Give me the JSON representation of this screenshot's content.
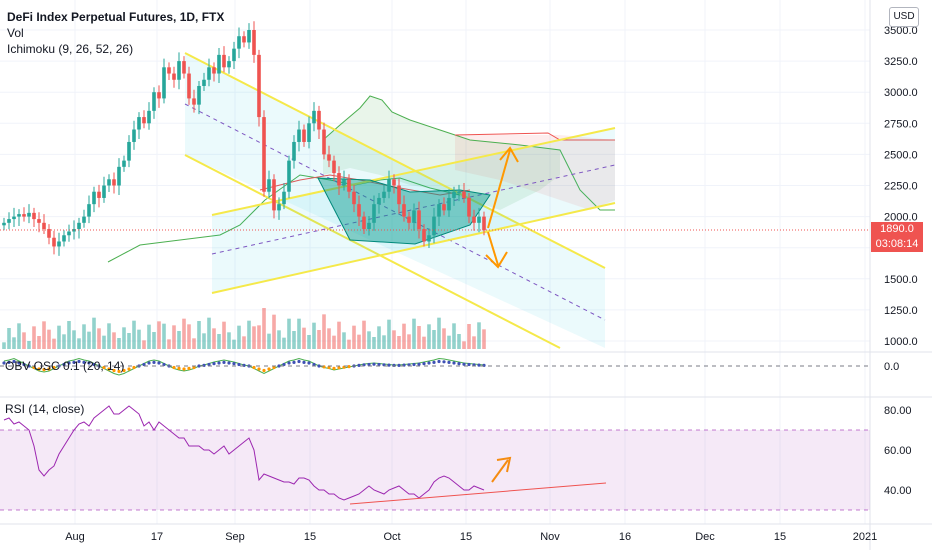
{
  "header": {
    "title": "DeFi Index Perpetual Futures, 1D, FTX",
    "vol_label": "Vol",
    "ichimoku_label": "Ichimoku (9, 26, 52, 26)"
  },
  "scale_button": "USD",
  "price_panel": {
    "y_ticks": [
      "3500.0",
      "3250.0",
      "3000.0",
      "2750.0",
      "2500.0",
      "2250.0",
      "2000.0",
      "1750.0",
      "1500.0",
      "1250.0",
      "1000.0"
    ],
    "y_tick_values": [
      3500,
      3250,
      3000,
      2750,
      2500,
      2250,
      2000,
      1750,
      1500,
      1250,
      1000
    ],
    "last_price": "1890.0",
    "countdown": "03:08:14",
    "last_price_color": "#ef5350"
  },
  "obv_panel": {
    "label": "OBV OSC 0.1 (20, 14)",
    "y_ticks": [
      "0.0"
    ]
  },
  "rsi_panel": {
    "label": "RSI (14, close)",
    "y_ticks": [
      "80.00",
      "60.00",
      "40.00"
    ],
    "y_tick_values": [
      80,
      60,
      40
    ],
    "band_upper": 70,
    "band_lower": 30
  },
  "x_axis": {
    "labels": [
      "Aug",
      "17",
      "Sep",
      "15",
      "Oct",
      "15",
      "Nov",
      "16",
      "Dec",
      "15",
      "2021"
    ]
  },
  "colors": {
    "up": "#26a69a",
    "down": "#ef5350",
    "channel": "#f5e94a",
    "rsi_line": "#9c27b0",
    "arrow": "#ff9800"
  },
  "chart_data": {
    "type": "candlestick",
    "symbol": "DeFi Index Perpetual Futures",
    "timeframe": "1D",
    "exchange": "FTX",
    "y_range": [
      900,
      3600
    ],
    "close": [
      1950,
      1980,
      2000,
      2020,
      2000,
      2030,
      1980,
      1950,
      1900,
      1830,
      1760,
      1800,
      1850,
      1880,
      1900,
      1950,
      2000,
      2100,
      2200,
      2150,
      2250,
      2300,
      2250,
      2400,
      2450,
      2600,
      2700,
      2800,
      2750,
      2850,
      3000,
      2950,
      3200,
      3150,
      3100,
      3250,
      3150,
      2950,
      2900,
      3050,
      3100,
      3200,
      3150,
      3300,
      3200,
      3250,
      3350,
      3450,
      3400,
      3500,
      3300,
      2800,
      2200,
      2300,
      2050,
      2100,
      2200,
      2450,
      2600,
      2700,
      2600,
      2750,
      2850,
      2700,
      2500,
      2450,
      2350,
      2250,
      2300,
      2200,
      2100,
      2000,
      1900,
      1950,
      2100,
      2150,
      2200,
      2300,
      2250,
      2100,
      2000,
      1950,
      2050,
      1900,
      1800,
      1850,
      2000,
      2100,
      2050,
      2150,
      2200,
      2200,
      2150,
      2000,
      1950,
      2000,
      1890
    ],
    "rsi": [
      75,
      76,
      73,
      74,
      72,
      70,
      62,
      50,
      47,
      50,
      52,
      58,
      62,
      66,
      70,
      73,
      74,
      72,
      76,
      78,
      80,
      82,
      78,
      78,
      80,
      82,
      80,
      78,
      72,
      74,
      70,
      74,
      72,
      70,
      68,
      66,
      66,
      62,
      62,
      62,
      60,
      60,
      58,
      60,
      62,
      58,
      60,
      62,
      64,
      66,
      60,
      45,
      48,
      47,
      46,
      45,
      44,
      44,
      43,
      46,
      46,
      45,
      42,
      40,
      40,
      38,
      38,
      36,
      35,
      36,
      37,
      38,
      40,
      42,
      40,
      39,
      38,
      40,
      41,
      42,
      40,
      38,
      38,
      36,
      38,
      40,
      44,
      46,
      47,
      46,
      44,
      42,
      40,
      40,
      42,
      41,
      40
    ],
    "obv_osc": [
      0.1,
      0.12,
      0.15,
      0.1,
      0.05,
      0,
      -0.05,
      -0.1,
      -0.12,
      -0.1,
      -0.05,
      0,
      0.05,
      0.1,
      0.12,
      0.15,
      0.12,
      0.1,
      0.05,
      0,
      -0.05,
      -0.1,
      -0.15,
      -0.18,
      -0.15,
      -0.1,
      -0.05,
      0,
      0.05,
      0.1,
      0.12,
      0.1,
      0.05,
      0,
      -0.05,
      -0.08,
      -0.1,
      -0.08,
      -0.05,
      0,
      0.02,
      0.05,
      0.08,
      0.1,
      0.12,
      0.1,
      0.08,
      0.05,
      0.02,
      0,
      -0.05,
      -0.1,
      -0.15,
      -0.1,
      -0.05,
      0,
      0.05,
      0.1,
      0.12,
      0.15,
      0.12,
      0.1,
      0.05,
      0,
      -0.03,
      -0.05,
      -0.08,
      -0.06,
      -0.04,
      -0.02,
      0,
      0.02,
      0.04,
      0.05,
      0.06,
      0.05,
      0.04,
      0.03,
      0.02,
      0.02,
      0.03,
      0.04,
      0.05,
      0.06,
      0.08,
      0.1,
      0.12,
      0.15,
      0.14,
      0.12,
      0.1,
      0.08,
      0.06,
      0.05,
      0.04,
      0.03,
      0.02
    ],
    "annotations": [
      "descending channel",
      "ascending channel",
      "inverse head and shoulders",
      "rising RSI support line"
    ]
  }
}
